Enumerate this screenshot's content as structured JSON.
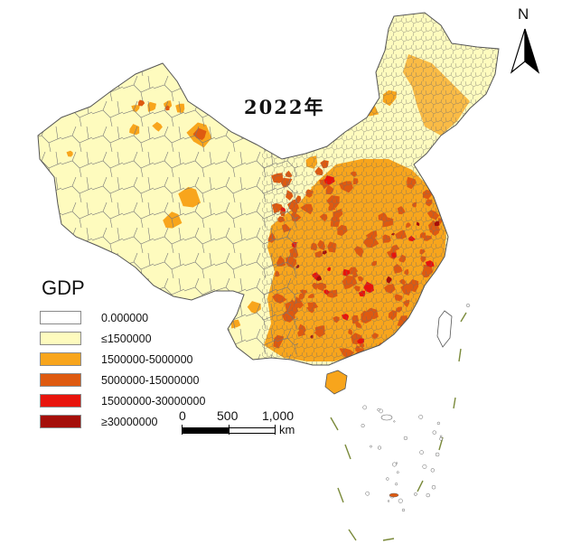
{
  "title": "2022年",
  "north_arrow": {
    "label": "N"
  },
  "legend": {
    "title": "GDP",
    "items": [
      {
        "label": "0.000000",
        "color": "#ffffff"
      },
      {
        "label": "≤1500000",
        "color": "#fefbbe"
      },
      {
        "label": "1500000-5000000",
        "color": "#f8a51c"
      },
      {
        "label": "5000000-15000000",
        "color": "#de5a10"
      },
      {
        "label": "15000000-30000000",
        "color": "#e8140c"
      },
      {
        "label": "≥30000000",
        "color": "#a50f0a"
      }
    ]
  },
  "scale_bar": {
    "ticks": [
      "0",
      "500",
      "1,000"
    ],
    "unit": "km"
  },
  "colors": {
    "boundary": "#6b6b6b",
    "nine_dash_line": "#7a8a3a"
  }
}
